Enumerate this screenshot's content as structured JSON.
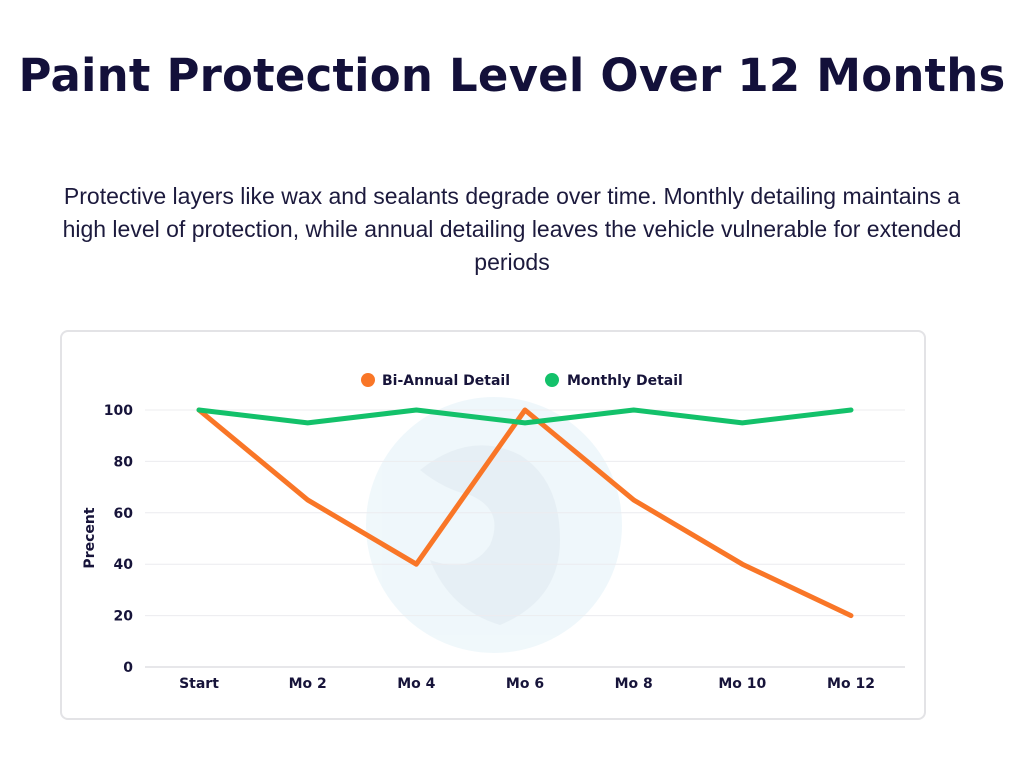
{
  "page": {
    "title": "Paint Protection Level Over 12 Months",
    "subtitle": "Protective layers like wax and sealants degrade over time. Monthly detailing maintains a high level of protection, while annual detailing leaves the vehicle vulnerable for extended periods"
  },
  "chart_data": {
    "type": "line",
    "title": "",
    "xlabel": "",
    "ylabel": "Precent",
    "categories": [
      "Start",
      "Mo 2",
      "Mo 4",
      "Mo 6",
      "Mo 8",
      "Mo 10",
      "Mo 12"
    ],
    "ylim": [
      0,
      100
    ],
    "yticks": [
      "0",
      "20",
      "40",
      "60",
      "80",
      "100"
    ],
    "grid": true,
    "legend_position": "top-center",
    "series": [
      {
        "name": "Bi-Annual Detail",
        "color": "#f97627",
        "values": [
          100,
          65,
          40,
          100,
          65,
          40,
          20
        ]
      },
      {
        "name": "Monthly Detail",
        "color": "#13c16a",
        "values": [
          100,
          95,
          100,
          95,
          100,
          95,
          100
        ]
      }
    ],
    "watermark": "logo-watermark"
  }
}
